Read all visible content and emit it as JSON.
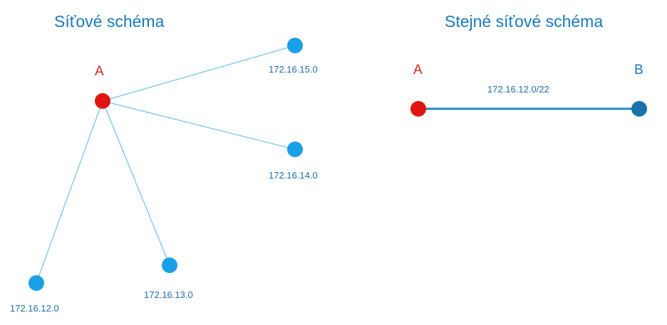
{
  "colors": {
    "title": "#1a7ab8",
    "router_red": "#e0150f",
    "router_label_red": "#d9261c",
    "node_blue": "#1aa0e6",
    "node_dark_blue": "#1a72a8",
    "link_light": "#6cc4e8",
    "link_summary": "#1e88c8",
    "net_label": "#1f6ea8"
  },
  "left_diagram": {
    "title": "Síťové schéma",
    "router": {
      "label": "A"
    },
    "networks": [
      {
        "label": "172.16.15.0"
      },
      {
        "label": "172.16.14.0"
      },
      {
        "label": "172.16.13.0"
      },
      {
        "label": "172.16.12.0"
      }
    ]
  },
  "right_diagram": {
    "title": "Stejné síťové schéma",
    "router_a": {
      "label": "A"
    },
    "router_b": {
      "label": "B"
    },
    "link": {
      "label": "172.16.12.0/22"
    }
  }
}
